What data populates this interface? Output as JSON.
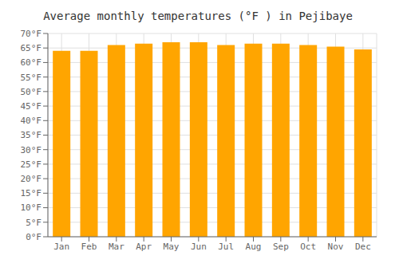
{
  "chart_data": {
    "type": "bar",
    "title": "Average monthly temperatures (°F ) in Pejibaye",
    "categories": [
      "Jan",
      "Feb",
      "Mar",
      "Apr",
      "May",
      "Jun",
      "Jul",
      "Aug",
      "Sep",
      "Oct",
      "Nov",
      "Dec"
    ],
    "values": [
      64,
      64,
      66,
      66.5,
      67,
      67,
      66,
      66.5,
      66.5,
      66,
      65.5,
      64.5
    ],
    "color": "#FFA500",
    "ylim": [
      0,
      70
    ],
    "yticks": [
      {
        "value": 0,
        "label": "0°F"
      },
      {
        "value": 5,
        "label": "5°F"
      },
      {
        "value": 10,
        "label": "10°F"
      },
      {
        "value": 15,
        "label": "15°F"
      },
      {
        "value": 20,
        "label": "20°F"
      },
      {
        "value": 25,
        "label": "25°F"
      },
      {
        "value": 30,
        "label": "30°F"
      },
      {
        "value": 35,
        "label": "35°F"
      },
      {
        "value": 40,
        "label": "40°F"
      },
      {
        "value": 45,
        "label": "45°F"
      },
      {
        "value": 50,
        "label": "50°F"
      },
      {
        "value": 55,
        "label": "55°F"
      },
      {
        "value": 60,
        "label": "60°F"
      },
      {
        "value": 65,
        "label": "65°F"
      },
      {
        "value": 70,
        "label": "70°F"
      }
    ],
    "grid": true
  }
}
